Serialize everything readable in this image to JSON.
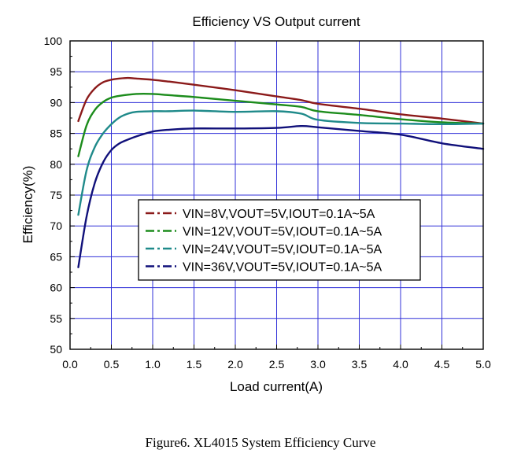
{
  "chart_data": {
    "type": "line",
    "title": "Efficiency VS Output current",
    "xlabel": "Load current(A)",
    "ylabel": "Efficiency(%)",
    "xlim": [
      0.0,
      5.0
    ],
    "ylim": [
      50,
      100
    ],
    "xticks": [
      0.0,
      0.5,
      1.0,
      1.5,
      2.0,
      2.5,
      3.0,
      3.5,
      4.0,
      4.5,
      5.0
    ],
    "xtick_labels": [
      "0.0",
      "0.5",
      "1.0",
      "1.5",
      "2.0",
      "2.5",
      "3.0",
      "3.5",
      "4.0",
      "4.5",
      "5.0"
    ],
    "yticks": [
      50,
      55,
      60,
      65,
      70,
      75,
      80,
      85,
      90,
      95,
      100
    ],
    "ytick_labels": [
      "50",
      "55",
      "60",
      "65",
      "70",
      "75",
      "80",
      "85",
      "90",
      "95",
      "100"
    ],
    "grid": true,
    "legend_position": "center",
    "series": [
      {
        "name": "VIN=8V,VOUT=5V,IOUT=0.1A~5A",
        "color": "#8B1A1A",
        "x": [
          0.1,
          0.2,
          0.3,
          0.4,
          0.5,
          0.6,
          0.7,
          0.8,
          1.0,
          1.2,
          1.5,
          2.0,
          2.5,
          2.8,
          3.0,
          3.5,
          4.0,
          4.5,
          5.0
        ],
        "y": [
          87.0,
          90.5,
          92.3,
          93.3,
          93.7,
          93.9,
          94.0,
          93.9,
          93.7,
          93.4,
          92.9,
          92.0,
          91.0,
          90.4,
          89.8,
          89.0,
          88.1,
          87.4,
          86.6
        ]
      },
      {
        "name": "VIN=12V,VOUT=5V,IOUT=0.1A~5A",
        "color": "#1C8C1C",
        "x": [
          0.1,
          0.2,
          0.3,
          0.4,
          0.5,
          0.6,
          0.8,
          1.0,
          1.2,
          1.5,
          2.0,
          2.5,
          2.8,
          3.0,
          3.5,
          4.0,
          4.5,
          5.0
        ],
        "y": [
          81.3,
          86.3,
          88.8,
          90.1,
          90.8,
          91.1,
          91.4,
          91.4,
          91.2,
          90.9,
          90.3,
          89.7,
          89.3,
          88.6,
          88.0,
          87.3,
          86.8,
          86.6
        ]
      },
      {
        "name": "VIN=24V,VOUT=5V,IOUT=0.1A~5A",
        "color": "#1F8A8A",
        "x": [
          0.1,
          0.2,
          0.3,
          0.4,
          0.5,
          0.6,
          0.7,
          0.8,
          1.0,
          1.2,
          1.5,
          2.0,
          2.5,
          2.8,
          3.0,
          3.5,
          4.0,
          4.5,
          5.0
        ],
        "y": [
          71.8,
          79.0,
          82.8,
          85.0,
          86.5,
          87.6,
          88.2,
          88.5,
          88.6,
          88.6,
          88.7,
          88.5,
          88.6,
          88.2,
          87.2,
          86.7,
          86.6,
          86.5,
          86.6
        ]
      },
      {
        "name": "VIN=36V,VOUT=5V,IOUT=0.1A~5A",
        "color": "#10107A",
        "x": [
          0.1,
          0.2,
          0.3,
          0.4,
          0.5,
          0.6,
          0.7,
          0.8,
          1.0,
          1.2,
          1.5,
          2.0,
          2.5,
          2.8,
          3.0,
          3.5,
          4.0,
          4.5,
          5.0
        ],
        "y": [
          63.3,
          71.5,
          77.0,
          80.3,
          82.3,
          83.4,
          84.0,
          84.5,
          85.3,
          85.6,
          85.8,
          85.8,
          85.9,
          86.2,
          86.0,
          85.4,
          84.8,
          83.4,
          82.5
        ]
      }
    ]
  },
  "caption": "Figure6. XL4015 System Efficiency Curve"
}
